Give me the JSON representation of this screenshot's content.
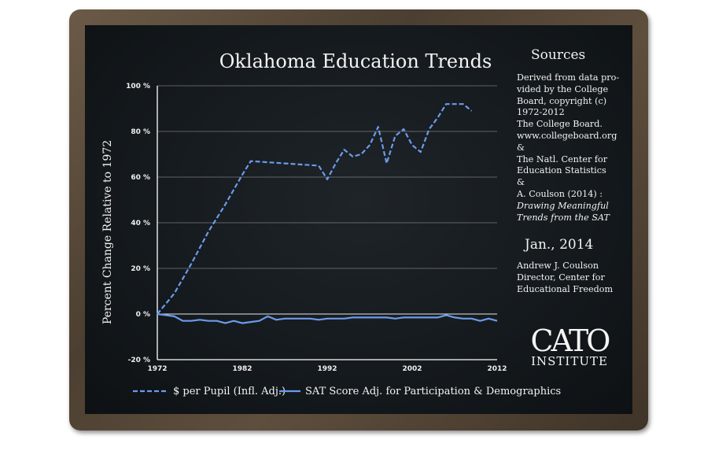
{
  "chart_data": {
    "type": "line",
    "title": "Oklahoma Education Trends",
    "ylabel": "Percent Change Relative to 1972",
    "xlabel": "",
    "xlim": [
      1972,
      2012
    ],
    "ylim": [
      -20,
      100
    ],
    "x_ticks": [
      "1972",
      "1982",
      "1992",
      "2002",
      "2012"
    ],
    "y_ticks": [
      {
        "value": 100,
        "label": "100 %"
      },
      {
        "value": 80,
        "label": "80 %"
      },
      {
        "value": 60,
        "label": "60 %"
      },
      {
        "value": 40,
        "label": "40 %"
      },
      {
        "value": 20,
        "label": "20 %"
      },
      {
        "value": 0,
        "label": "0 %"
      },
      {
        "value": -20,
        "label": "-20 %"
      }
    ],
    "grid": true,
    "legend_position": "bottom",
    "series": [
      {
        "name": "$ per Pupil (Infl. Adj.)",
        "style": "dashed",
        "color": "#6b9bea",
        "x": [
          1972,
          1974,
          1976,
          1978,
          1980,
          1982,
          1983,
          1987,
          1991,
          1992,
          1993,
          1994,
          1995,
          1996,
          1997,
          1998,
          1999,
          2000,
          2001,
          2002,
          2003,
          2004,
          2005,
          2006,
          2007,
          2008,
          2009
        ],
        "y": [
          0,
          9,
          22,
          36,
          48,
          61,
          67,
          66,
          65,
          59,
          66,
          72,
          69,
          70,
          74,
          82,
          66,
          78,
          81,
          74,
          71,
          81,
          86,
          92,
          92,
          92,
          89
        ]
      },
      {
        "name": "SAT Score Adj. for Participation & Demographics",
        "style": "solid",
        "color": "#6b9bea",
        "x": [
          1972,
          1974,
          1975,
          1976,
          1977,
          1978,
          1979,
          1980,
          1981,
          1982,
          1983,
          1984,
          1985,
          1986,
          1987,
          1988,
          1989,
          1990,
          1991,
          1992,
          1993,
          1994,
          1995,
          1996,
          1997,
          1998,
          1999,
          2000,
          2001,
          2002,
          2003,
          2004,
          2005,
          2006,
          2007,
          2008,
          2009,
          2010,
          2011,
          2012
        ],
        "y": [
          0,
          -1,
          -3,
          -3,
          -2.5,
          -3,
          -3,
          -4,
          -3,
          -4,
          -3.5,
          -3,
          -1,
          -2.5,
          -2,
          -2,
          -2,
          -2,
          -2.5,
          -2,
          -2,
          -2,
          -1.5,
          -1.5,
          -1.5,
          -1.5,
          -1.5,
          -2,
          -1.5,
          -1.5,
          -1.5,
          -1.5,
          -1.5,
          -0.5,
          -1.5,
          -2,
          -2,
          -3,
          -2,
          -3
        ]
      }
    ],
    "axis_color": "#ffffff",
    "negative_tick_color": "#e0211f",
    "grid_color": "#d8d8d8"
  },
  "sources": {
    "title": "Sources",
    "lines": [
      "Derived from data pro-",
      "vided by the College",
      "Board, copyright (c)",
      "1972-2012",
      "The College Board.",
      "www.collegeboard.org",
      "&",
      "The Natl. Center for",
      "Education Statistics",
      "&",
      "A. Coulson (2014) :"
    ],
    "italic_lines": [
      "Drawing Meaningful",
      "Trends from the SAT"
    ],
    "date": "Jan., 2014",
    "author_lines": [
      "Andrew J. Coulson",
      "Director, Center for",
      "Educational Freedom"
    ]
  },
  "logo": {
    "word": "CATO",
    "subword": "INSTITUTE"
  }
}
